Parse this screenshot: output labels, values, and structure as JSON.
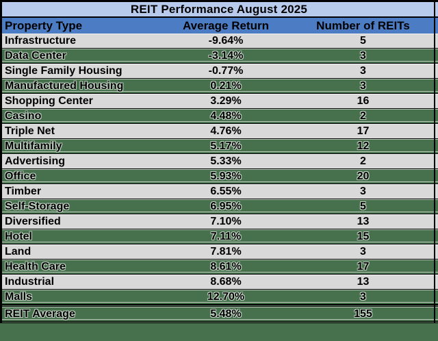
{
  "page": {
    "background_color": "#47704d"
  },
  "colors": {
    "title_bg": "#b9cbec",
    "header_bg": "#4c7cc4",
    "row_plain_bg": "#d9d9d9",
    "row_striped_bg": "#47704d",
    "row_stripe_line": "#bccdbe",
    "border": "#000000",
    "text": "#000000"
  },
  "table": {
    "title": "REIT Performance August 2025",
    "columns": [
      {
        "key": "property",
        "label": "Property Type"
      },
      {
        "key": "return",
        "label": "Average Return"
      },
      {
        "key": "count",
        "label": "Number of REITs"
      }
    ],
    "rows": [
      {
        "property": "Infrastructure",
        "avg_return": "-9.64%",
        "num_reits": "5",
        "striped": false,
        "total": false
      },
      {
        "property": "Data Center",
        "avg_return": "-3.14%",
        "num_reits": "3",
        "striped": true,
        "total": false
      },
      {
        "property": "Single Family Housing",
        "avg_return": "-0.77%",
        "num_reits": "3",
        "striped": false,
        "total": false
      },
      {
        "property": "Manufactured Housing",
        "avg_return": "0.21%",
        "num_reits": "3",
        "striped": true,
        "total": false
      },
      {
        "property": "Shopping Center",
        "avg_return": "3.29%",
        "num_reits": "16",
        "striped": false,
        "total": false
      },
      {
        "property": "Casino",
        "avg_return": "4.48%",
        "num_reits": "2",
        "striped": true,
        "total": false
      },
      {
        "property": "Triple Net",
        "avg_return": "4.76%",
        "num_reits": "17",
        "striped": false,
        "total": false
      },
      {
        "property": "Multifamily",
        "avg_return": "5.17%",
        "num_reits": "12",
        "striped": true,
        "total": false
      },
      {
        "property": "Advertising",
        "avg_return": "5.33%",
        "num_reits": "2",
        "striped": false,
        "total": false
      },
      {
        "property": "Office",
        "avg_return": "5.93%",
        "num_reits": "20",
        "striped": true,
        "total": false
      },
      {
        "property": "Timber",
        "avg_return": "6.55%",
        "num_reits": "3",
        "striped": false,
        "total": false
      },
      {
        "property": "Self-Storage",
        "avg_return": "6.95%",
        "num_reits": "5",
        "striped": true,
        "total": false
      },
      {
        "property": "Diversified",
        "avg_return": "7.10%",
        "num_reits": "13",
        "striped": false,
        "total": false
      },
      {
        "property": "Hotel",
        "avg_return": "7.11%",
        "num_reits": "15",
        "striped": true,
        "total": false
      },
      {
        "property": "Land",
        "avg_return": "7.81%",
        "num_reits": "3",
        "striped": false,
        "total": false
      },
      {
        "property": "Health Care",
        "avg_return": "8.61%",
        "num_reits": "17",
        "striped": true,
        "total": false
      },
      {
        "property": "Industrial",
        "avg_return": "8.68%",
        "num_reits": "13",
        "striped": false,
        "total": false
      },
      {
        "property": "Malls",
        "avg_return": "12.70%",
        "num_reits": "3",
        "striped": true,
        "total": false
      },
      {
        "property": "REIT Average",
        "avg_return": "5.48%",
        "num_reits": "155",
        "striped": true,
        "total": true
      }
    ]
  },
  "chart_data": {
    "type": "table",
    "title": "REIT Performance August 2025",
    "columns": [
      "Property Type",
      "Average Return",
      "Number of REITs"
    ],
    "rows": [
      [
        "Infrastructure",
        -9.64,
        5
      ],
      [
        "Data Center",
        -3.14,
        3
      ],
      [
        "Single Family Housing",
        -0.77,
        3
      ],
      [
        "Manufactured Housing",
        0.21,
        3
      ],
      [
        "Shopping Center",
        3.29,
        16
      ],
      [
        "Casino",
        4.48,
        2
      ],
      [
        "Triple Net",
        4.76,
        17
      ],
      [
        "Multifamily",
        5.17,
        12
      ],
      [
        "Advertising",
        5.33,
        2
      ],
      [
        "Office",
        5.93,
        20
      ],
      [
        "Timber",
        6.55,
        3
      ],
      [
        "Self-Storage",
        6.95,
        5
      ],
      [
        "Diversified",
        7.1,
        13
      ],
      [
        "Hotel",
        7.11,
        15
      ],
      [
        "Land",
        7.81,
        3
      ],
      [
        "Health Care",
        8.61,
        17
      ],
      [
        "Industrial",
        8.68,
        13
      ],
      [
        "Malls",
        12.7,
        3
      ],
      [
        "REIT Average",
        5.48,
        155
      ]
    ],
    "units": {
      "Average Return": "percent"
    },
    "layout": {
      "striped_highlight_rows": [
        1,
        3,
        5,
        7,
        9,
        11,
        13,
        15,
        17,
        18
      ],
      "total_row_index": 18
    }
  }
}
